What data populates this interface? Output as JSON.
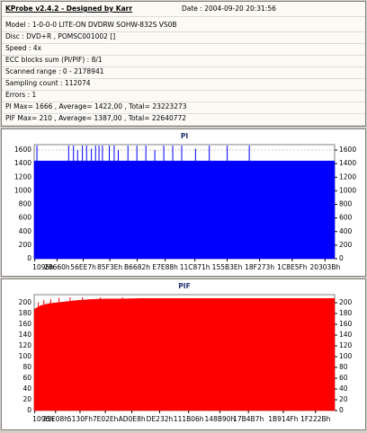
{
  "info": {
    "title": "KProbe v2.4.2 - Designed by Karr",
    "date": "Date : 2004-09-20 20:31:56",
    "lines": [
      "Model : 1-0-0-0 LITE-ON DVDRW SOHW-832S  VS0B",
      "Disc : DVD+R , POMSC001002 []",
      "Speed : 4x",
      "ECC blocks sum (PI/PIF) : 8/1",
      "Scanned range : 0 - 2178941",
      "Sampling count : 112074",
      "Errors : 1",
      "PI Max= 1666 , Average= 1422,00 , Total= 23223273",
      "PIF Max= 210 , Average= 1387,00 , Total= 22640772"
    ]
  },
  "chart_data": [
    {
      "type": "area",
      "title": "PI",
      "xlim": [
        0,
        2178941
      ],
      "ylim": [
        0,
        1680
      ],
      "yticks": [
        0,
        200,
        400,
        600,
        800,
        1000,
        1200,
        1400,
        1600
      ],
      "xticks": [
        {
          "value": 4246,
          "label": "1096h"
        },
        {
          "value": 165472,
          "label": "28660h"
        },
        {
          "value": 356071,
          "label": "56EE7h"
        },
        {
          "value": 548670,
          "label": "85F3Eh"
        },
        {
          "value": 747138,
          "label": "B6682h"
        },
        {
          "value": 949896,
          "label": "E7E88h"
        },
        {
          "value": 1165425,
          "label": "11C871h"
        },
        {
          "value": 1399614,
          "label": "155B3Eh"
        },
        {
          "value": 1634931,
          "label": "18F273h"
        },
        {
          "value": 1871455,
          "label": "1C8E5Fh"
        },
        {
          "value": 2109499,
          "label": "20303Bh"
        }
      ],
      "grid": true,
      "series": [
        {
          "color": "#0000ff",
          "x": [
            0,
            2178941
          ],
          "values": [
            1440,
            1440
          ]
        },
        {
          "color": "#0000ff",
          "style": "spikes",
          "x": [
            20000,
            250000,
            285000,
            315000,
            350000,
            380000,
            415000,
            445000,
            470000,
            495000,
            545000,
            580000,
            610000,
            680000,
            745000,
            810000,
            875000,
            940000,
            1005000,
            1070000,
            1170000,
            1270000,
            1400000,
            1560000
          ],
          "values": [
            1666,
            1666,
            1666,
            1600,
            1666,
            1666,
            1620,
            1666,
            1666,
            1666,
            1666,
            1666,
            1600,
            1666,
            1666,
            1666,
            1600,
            1666,
            1666,
            1666,
            1620,
            1666,
            1666,
            1666
          ]
        }
      ]
    },
    {
      "type": "area",
      "title": "PIF",
      "xlim": [
        0,
        2178941
      ],
      "ylim": [
        0,
        215
      ],
      "yticks": [
        0,
        20,
        40,
        60,
        80,
        100,
        120,
        140,
        160,
        180,
        200
      ],
      "xticks": [
        {
          "value": 4246,
          "label": "1096h"
        },
        {
          "value": 155144,
          "label": "25E08h"
        },
        {
          "value": 332559,
          "label": "5130Fh"
        },
        {
          "value": 516142,
          "label": "7E02Eh"
        },
        {
          "value": 708840,
          "label": "AD0E8h"
        },
        {
          "value": 909874,
          "label": "DE232h"
        },
        {
          "value": 1120006,
          "label": "111B06h"
        },
        {
          "value": 1346448,
          "label": "148B90h"
        },
        {
          "value": 1553591,
          "label": "17B4B7h"
        },
        {
          "value": 1806671,
          "label": "1B914Fh"
        },
        {
          "value": 2040363,
          "label": "1F222Bh"
        }
      ],
      "grid": true,
      "series": [
        {
          "color": "#ff0000",
          "x": [
            0,
            50000,
            100000,
            200000,
            300000,
            400000,
            500000,
            600000,
            800000,
            1000000,
            1200000,
            1500000,
            1800000,
            2178941
          ],
          "values": [
            188,
            195,
            198,
            201,
            204,
            206,
            207,
            207,
            208,
            208,
            208,
            208,
            208,
            208
          ]
        },
        {
          "color": "#ff0000",
          "style": "spikes",
          "x": [
            30000,
            70000,
            120000,
            180000,
            260000,
            350000,
            480000,
            640000
          ],
          "values": [
            200,
            205,
            207,
            209,
            210,
            210,
            210,
            210
          ]
        }
      ]
    }
  ]
}
